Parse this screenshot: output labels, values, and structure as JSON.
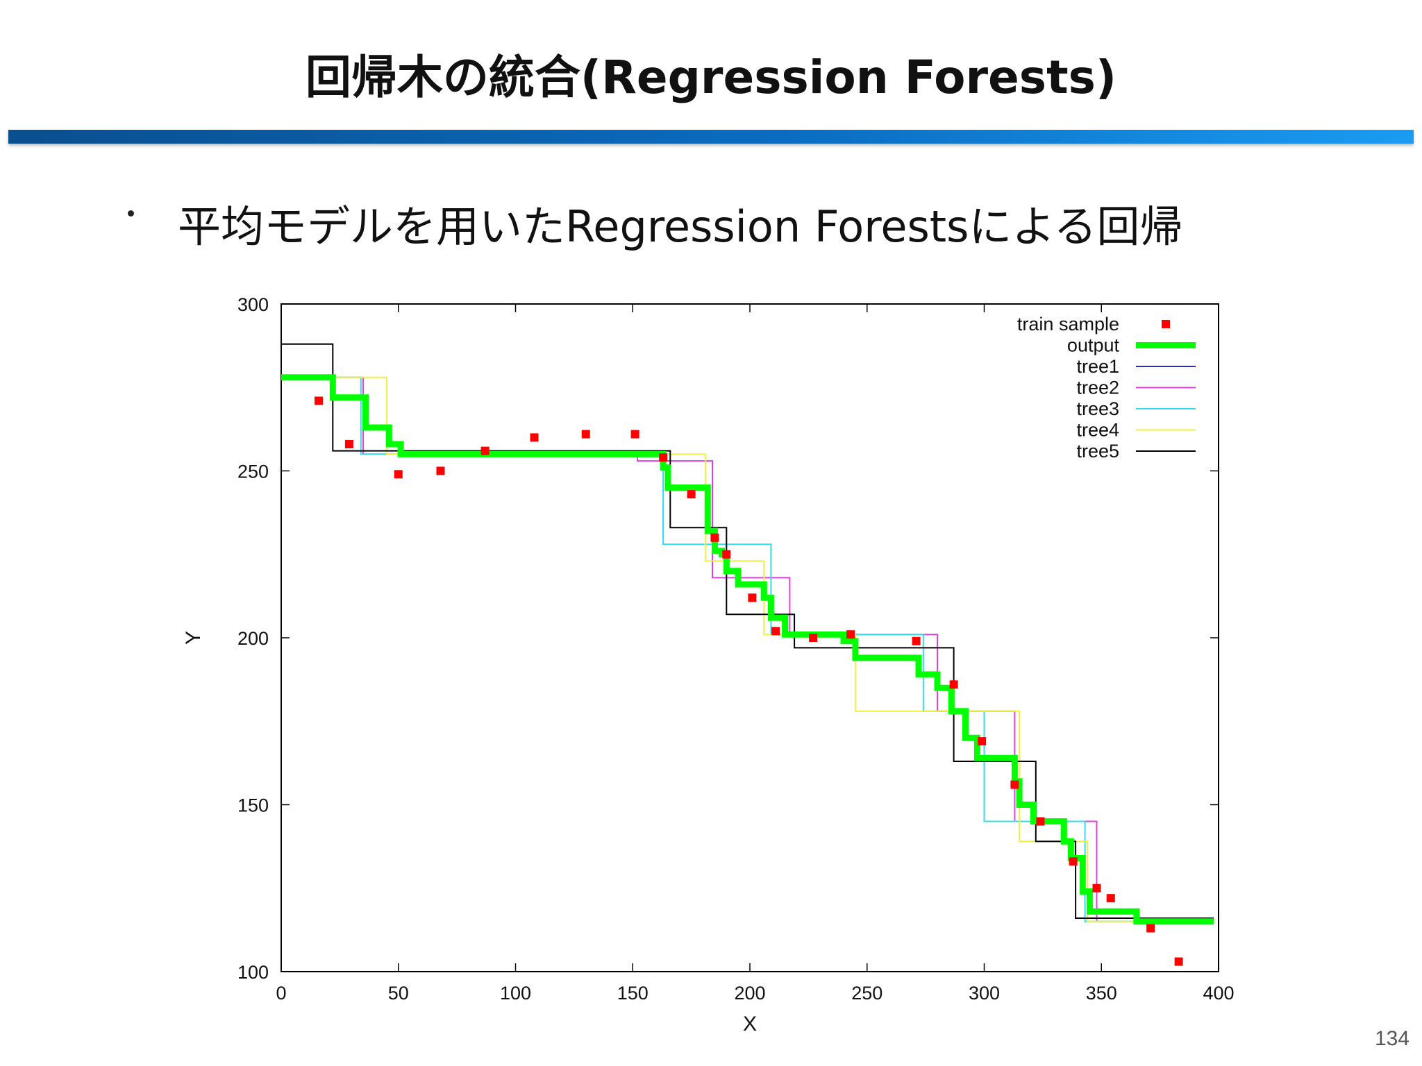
{
  "slide": {
    "title": "回帰木の統合(Regression Forests)",
    "bullet": "平均モデルを用いたRegression Forestsによる回帰",
    "page_number": "134"
  },
  "colors": {
    "title_bar_start": "#0a4f8f",
    "title_bar_end": "#1a9cf2",
    "train_sample": "#ff0000",
    "output": "#00ff00",
    "tree1": "#2a2ad0",
    "tree2": "#e040e0",
    "tree3": "#33ddee",
    "tree4": "#f0f040",
    "tree5": "#000000"
  },
  "chart_data": {
    "type": "line",
    "xlabel": "X",
    "ylabel": "Y",
    "xlim": [
      0,
      400
    ],
    "ylim": [
      100,
      300
    ],
    "xticks": [
      0,
      50,
      100,
      150,
      200,
      250,
      300,
      350,
      400
    ],
    "yticks": [
      100,
      150,
      200,
      250,
      300
    ],
    "grid": false,
    "legend_position": "top-right",
    "series": [
      {
        "name": "train sample",
        "kind": "points",
        "color": "#ff0000",
        "points": [
          [
            16,
            271
          ],
          [
            29,
            258
          ],
          [
            50,
            249
          ],
          [
            68,
            250
          ],
          [
            87,
            256
          ],
          [
            108,
            260
          ],
          [
            130,
            261
          ],
          [
            151,
            261
          ],
          [
            163,
            254
          ],
          [
            175,
            243
          ],
          [
            185,
            230
          ],
          [
            190,
            225
          ],
          [
            201,
            212
          ],
          [
            211,
            202
          ],
          [
            227,
            200
          ],
          [
            243,
            201
          ],
          [
            271,
            199
          ],
          [
            287,
            186
          ],
          [
            299,
            169
          ],
          [
            313,
            156
          ],
          [
            324,
            145
          ],
          [
            338,
            133
          ],
          [
            348,
            125
          ],
          [
            354,
            122
          ],
          [
            371,
            113
          ],
          [
            383,
            103
          ]
        ]
      },
      {
        "name": "output",
        "kind": "step",
        "color": "#00ff00",
        "points": [
          [
            0,
            278
          ],
          [
            22,
            278
          ],
          [
            22,
            272
          ],
          [
            36,
            272
          ],
          [
            36,
            263
          ],
          [
            46,
            263
          ],
          [
            46,
            258
          ],
          [
            51,
            258
          ],
          [
            51,
            255
          ],
          [
            163,
            255
          ],
          [
            163,
            251
          ],
          [
            165,
            251
          ],
          [
            165,
            245
          ],
          [
            182,
            245
          ],
          [
            182,
            232
          ],
          [
            185,
            232
          ],
          [
            185,
            226
          ],
          [
            188,
            226
          ],
          [
            188,
            225
          ],
          [
            190,
            225
          ],
          [
            190,
            220
          ],
          [
            195,
            220
          ],
          [
            195,
            216
          ],
          [
            206,
            216
          ],
          [
            206,
            212
          ],
          [
            209,
            212
          ],
          [
            209,
            206
          ],
          [
            215,
            206
          ],
          [
            215,
            201
          ],
          [
            240,
            201
          ],
          [
            240,
            199
          ],
          [
            245,
            199
          ],
          [
            245,
            194
          ],
          [
            272,
            194
          ],
          [
            272,
            189
          ],
          [
            280,
            189
          ],
          [
            280,
            185
          ],
          [
            286,
            185
          ],
          [
            286,
            178
          ],
          [
            292,
            178
          ],
          [
            292,
            170
          ],
          [
            297,
            170
          ],
          [
            297,
            164
          ],
          [
            313,
            164
          ],
          [
            313,
            157
          ],
          [
            315,
            157
          ],
          [
            315,
            150
          ],
          [
            321,
            150
          ],
          [
            321,
            145
          ],
          [
            334,
            145
          ],
          [
            334,
            139
          ],
          [
            337,
            139
          ],
          [
            337,
            134
          ],
          [
            342,
            134
          ],
          [
            342,
            124
          ],
          [
            345,
            124
          ],
          [
            345,
            118
          ],
          [
            365,
            118
          ],
          [
            365,
            115
          ],
          [
            398,
            115
          ]
        ]
      },
      {
        "name": "tree1",
        "kind": "step",
        "color": "#2a2ad0",
        "points": []
      },
      {
        "name": "tree2",
        "kind": "step",
        "color": "#e040e0",
        "points": [
          [
            0,
            278
          ],
          [
            35,
            278
          ],
          [
            35,
            255
          ],
          [
            152,
            255
          ],
          [
            152,
            253
          ],
          [
            184,
            253
          ],
          [
            184,
            218
          ],
          [
            217,
            218
          ],
          [
            217,
            201
          ],
          [
            280,
            201
          ],
          [
            280,
            178
          ],
          [
            313,
            178
          ],
          [
            313,
            145
          ],
          [
            348,
            145
          ],
          [
            348,
            115
          ],
          [
            398,
            115
          ]
        ]
      },
      {
        "name": "tree3",
        "kind": "step",
        "color": "#33ddee",
        "points": [
          [
            0,
            278
          ],
          [
            34,
            278
          ],
          [
            34,
            255
          ],
          [
            163,
            255
          ],
          [
            163,
            228
          ],
          [
            209,
            228
          ],
          [
            209,
            201
          ],
          [
            274,
            201
          ],
          [
            274,
            178
          ],
          [
            300,
            178
          ],
          [
            300,
            145
          ],
          [
            343,
            145
          ],
          [
            343,
            115
          ],
          [
            398,
            115
          ]
        ]
      },
      {
        "name": "tree4",
        "kind": "step",
        "color": "#f0f040",
        "points": [
          [
            0,
            278
          ],
          [
            45,
            278
          ],
          [
            45,
            255
          ],
          [
            152,
            255
          ],
          [
            152,
            255
          ],
          [
            181,
            255
          ],
          [
            181,
            223
          ],
          [
            206,
            223
          ],
          [
            206,
            201
          ],
          [
            245,
            201
          ],
          [
            245,
            178
          ],
          [
            315,
            178
          ],
          [
            315,
            139
          ],
          [
            344,
            139
          ],
          [
            344,
            115
          ],
          [
            398,
            115
          ]
        ]
      },
      {
        "name": "tree5",
        "kind": "step",
        "color": "#000000",
        "points": [
          [
            0,
            288
          ],
          [
            22,
            288
          ],
          [
            22,
            256
          ],
          [
            166,
            256
          ],
          [
            166,
            233
          ],
          [
            190,
            233
          ],
          [
            190,
            207
          ],
          [
            219,
            207
          ],
          [
            219,
            197
          ],
          [
            287,
            197
          ],
          [
            287,
            163
          ],
          [
            322,
            163
          ],
          [
            322,
            139
          ],
          [
            339,
            139
          ],
          [
            339,
            116
          ],
          [
            398,
            116
          ]
        ]
      }
    ]
  }
}
